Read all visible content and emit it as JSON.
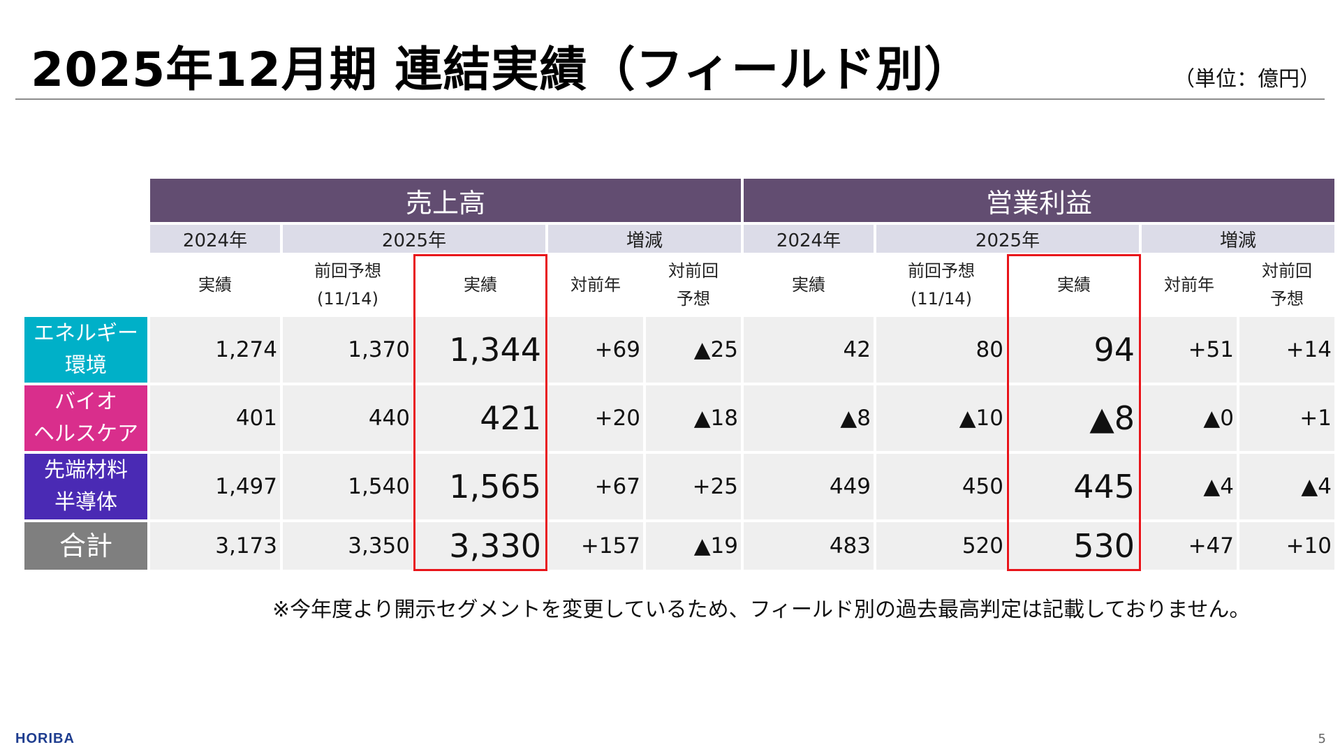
{
  "title": "2025年12月期 連結実績（フィールド別）",
  "unit_label": "（単位：億円）",
  "sections": {
    "sales": "売上高",
    "operating_income": "営業利益"
  },
  "year_headers": {
    "y2024": "2024年",
    "y2025": "2025年",
    "change": "増減"
  },
  "sub_headers": {
    "actual": "実績",
    "prev_forecast": "前回予想",
    "prev_forecast_date": "(11/14)",
    "yoy": "対前年",
    "vs_prev_line1": "対前回",
    "vs_prev_line2": "予想"
  },
  "colors": {
    "header": "#624d71",
    "energy": "#00b0c8",
    "bio": "#d92e8c",
    "materials": "#4a2ab4",
    "total": "#7f7f7f",
    "highlight": "#e8141a"
  },
  "rows": [
    {
      "label1": "エネルギー",
      "label2": "環境",
      "sales": [
        "1,274",
        "1,370",
        "1,344",
        "+69",
        "▲25"
      ],
      "op": [
        "42",
        "80",
        "94",
        "+51",
        "+14"
      ]
    },
    {
      "label1": "バイオ",
      "label2": "ヘルスケア",
      "sales": [
        "401",
        "440",
        "421",
        "+20",
        "▲18"
      ],
      "op": [
        "▲8",
        "▲10",
        "▲8",
        "▲0",
        "+1"
      ]
    },
    {
      "label1": "先端材料",
      "label2": "半導体",
      "sales": [
        "1,497",
        "1,540",
        "1,565",
        "+67",
        "+25"
      ],
      "op": [
        "449",
        "450",
        "445",
        "▲4",
        "▲4"
      ]
    },
    {
      "label1": "合計",
      "label2": "",
      "sales": [
        "3,173",
        "3,350",
        "3,330",
        "+157",
        "▲19"
      ],
      "op": [
        "483",
        "520",
        "530",
        "+47",
        "+10"
      ]
    }
  ],
  "note": "※今年度より開示セグメントを変更しているため、フィールド別の過去最高判定は記載しておりません。",
  "logo": "HORIBA",
  "page_number": "5"
}
